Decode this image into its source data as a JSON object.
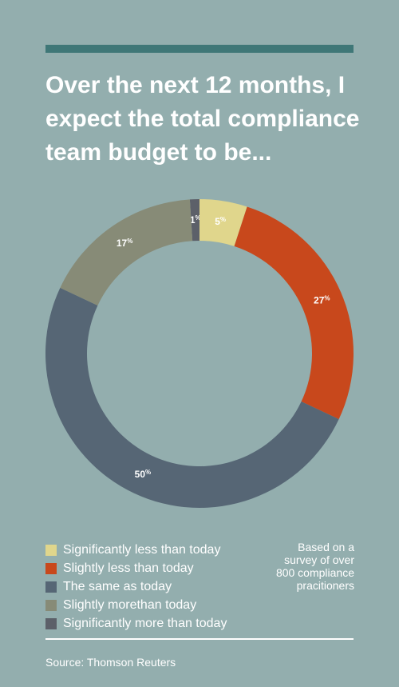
{
  "title_lines": [
    "Over the next 12 months, I",
    "expect the total compliance",
    "team budget to be..."
  ],
  "chart_data": {
    "type": "pie",
    "variant": "donut",
    "categories": [
      "Significantly less than today",
      "Slightly less than today",
      "The same as today",
      "Slightly morethan today",
      "Significantly more than today"
    ],
    "values": [
      5,
      27,
      50,
      17,
      1
    ],
    "colors": [
      "#e0d68c",
      "#c8481c",
      "#566675",
      "#878b77",
      "#5c6069"
    ],
    "value_labels": [
      "5%",
      "27%",
      "50%",
      "17%",
      "1%"
    ],
    "legend_position": "bottom-left"
  },
  "note_lines": [
    "Based on a",
    "survey of over",
    "800 compliance",
    "pracitioners"
  ],
  "source": "Source: Thomson Reuters"
}
